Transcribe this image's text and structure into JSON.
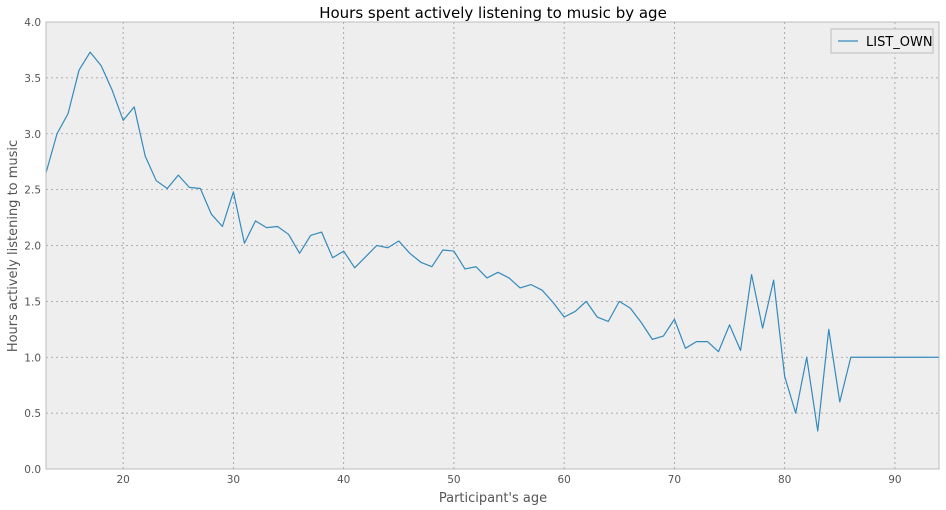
{
  "chart_data": {
    "type": "line",
    "title": "Hours spent actively listening to music by age",
    "xlabel": "Participant's age",
    "ylabel": "Hours actively listening to music",
    "xlim": [
      13,
      94
    ],
    "ylim": [
      0,
      4
    ],
    "xticks": [
      20,
      30,
      40,
      50,
      60,
      70,
      80,
      90
    ],
    "yticks": [
      0.0,
      0.5,
      1.0,
      1.5,
      2.0,
      2.5,
      3.0,
      3.5,
      4.0
    ],
    "ytick_labels": [
      "0.0",
      "0.5",
      "1.0",
      "1.5",
      "2.0",
      "2.5",
      "3.0",
      "3.5",
      "4.0"
    ],
    "grid": true,
    "legend_position": "top-right",
    "series": [
      {
        "name": "LIST_OWN",
        "color": "#348ABD",
        "x": [
          13,
          14,
          15,
          16,
          17,
          18,
          19,
          20,
          21,
          22,
          23,
          24,
          25,
          26,
          27,
          28,
          29,
          30,
          31,
          32,
          33,
          34,
          35,
          36,
          37,
          38,
          39,
          40,
          41,
          42,
          43,
          44,
          45,
          46,
          47,
          48,
          49,
          50,
          51,
          52,
          53,
          54,
          55,
          56,
          57,
          58,
          59,
          60,
          61,
          62,
          63,
          64,
          65,
          66,
          67,
          68,
          69,
          70,
          71,
          72,
          73,
          74,
          75,
          76,
          77,
          78,
          79,
          80,
          81,
          82,
          83,
          84,
          85,
          86,
          87,
          88,
          89,
          90,
          91,
          92,
          93,
          94
        ],
        "y": [
          2.65,
          3.0,
          3.18,
          3.57,
          3.73,
          3.61,
          3.39,
          3.12,
          3.24,
          2.8,
          2.58,
          2.51,
          2.63,
          2.52,
          2.51,
          2.28,
          2.17,
          2.48,
          2.02,
          2.22,
          2.16,
          2.17,
          2.1,
          1.93,
          2.09,
          2.12,
          1.89,
          1.95,
          1.8,
          1.9,
          2.0,
          1.98,
          2.04,
          1.93,
          1.85,
          1.81,
          1.96,
          1.95,
          1.79,
          1.81,
          1.71,
          1.76,
          1.71,
          1.62,
          1.65,
          1.6,
          1.49,
          1.36,
          1.41,
          1.5,
          1.36,
          1.32,
          1.5,
          1.44,
          1.31,
          1.16,
          1.19,
          1.34,
          1.08,
          1.14,
          1.14,
          1.05,
          1.29,
          1.06,
          1.74,
          1.26,
          1.69,
          0.83,
          0.5,
          1.0,
          0.34,
          1.25,
          0.6,
          1.0,
          1.0,
          1.0,
          1.0,
          1.0,
          1.0,
          1.0,
          1.0,
          1.0
        ]
      }
    ]
  }
}
